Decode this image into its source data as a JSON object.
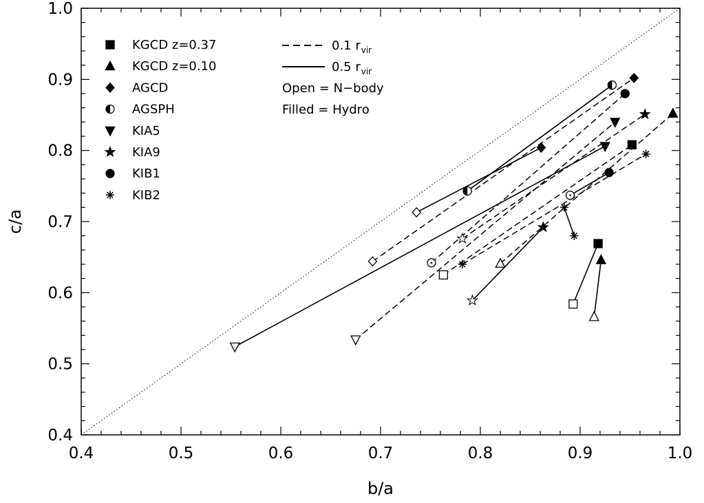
{
  "chart_data": {
    "type": "scatter",
    "xlabel": "b/a",
    "ylabel": "c/a",
    "xlim": [
      0.4,
      1.0
    ],
    "ylim": [
      0.4,
      1.0
    ],
    "x_ticks": [
      "0.4",
      "0.5",
      "0.6",
      "0.7",
      "0.8",
      "0.9",
      "1.0"
    ],
    "y_ticks": [
      "0.4",
      "0.5",
      "0.6",
      "0.7",
      "0.8",
      "0.9",
      "1.0"
    ],
    "diagonal_reference": {
      "style": "dotted",
      "from": [
        0.4,
        0.4
      ],
      "to": [
        1.0,
        1.0
      ]
    },
    "legend_markers": [
      {
        "label": "KGCD z=0.37",
        "marker": "square"
      },
      {
        "label": "KGCD z=0.10",
        "marker": "triangle-up"
      },
      {
        "label": "AGCD",
        "marker": "diamond"
      },
      {
        "label": "AGSPH",
        "marker": "half-circle"
      },
      {
        "label": "KIA5",
        "marker": "triangle-down"
      },
      {
        "label": "KIA9",
        "marker": "star"
      },
      {
        "label": "KIB1",
        "marker": "circle"
      },
      {
        "label": "KIB2",
        "marker": "asterisk"
      }
    ],
    "legend_lines": [
      {
        "text": "0.1 r",
        "sub": "vir",
        "style": "dashed"
      },
      {
        "text": "0.5 r",
        "sub": "vir",
        "style": "solid"
      }
    ],
    "legend_notes": [
      "Open = N−body",
      "Filled = Hydro"
    ],
    "series": [
      {
        "marker": "square",
        "dashed": [
          [
            0.763,
            0.625
          ],
          [
            0.952,
            0.808
          ]
        ],
        "solid": [
          [
            0.893,
            0.584
          ],
          [
            0.918,
            0.669
          ]
        ]
      },
      {
        "marker": "triangle-up",
        "dashed": [
          [
            0.82,
            0.641
          ],
          [
            0.993,
            0.852
          ]
        ],
        "solid": [
          [
            0.914,
            0.566
          ],
          [
            0.921,
            0.646
          ]
        ]
      },
      {
        "marker": "diamond",
        "dashed": [
          [
            0.692,
            0.644
          ],
          [
            0.954,
            0.902
          ]
        ],
        "solid": [
          [
            0.736,
            0.713
          ],
          [
            0.861,
            0.804
          ]
        ]
      },
      {
        "marker": "half-circle",
        "dashed": [
          [
            0.787,
            0.743
          ],
          [
            0.932,
            0.892
          ]
        ],
        "solid": [
          [
            0.787,
            0.743
          ],
          [
            0.932,
            0.892
          ]
        ]
      },
      {
        "marker": "triangle-down",
        "dashed": [
          [
            0.675,
            0.534
          ],
          [
            0.935,
            0.84
          ]
        ],
        "solid": [
          [
            0.554,
            0.524
          ],
          [
            0.925,
            0.806
          ]
        ]
      },
      {
        "marker": "star",
        "dashed": [
          [
            0.782,
            0.676
          ],
          [
            0.965,
            0.851
          ]
        ],
        "solid": [
          [
            0.792,
            0.589
          ],
          [
            0.863,
            0.692
          ]
        ]
      },
      {
        "marker": "circle",
        "dashed": [
          [
            0.751,
            0.642
          ],
          [
            0.945,
            0.88
          ]
        ],
        "solid": [
          [
            0.89,
            0.737
          ],
          [
            0.929,
            0.769
          ]
        ]
      },
      {
        "marker": "asterisk",
        "dashed": [
          [
            0.782,
            0.64
          ],
          [
            0.966,
            0.795
          ]
        ],
        "solid": [
          [
            0.894,
            0.68
          ],
          [
            0.884,
            0.72
          ]
        ]
      }
    ]
  }
}
